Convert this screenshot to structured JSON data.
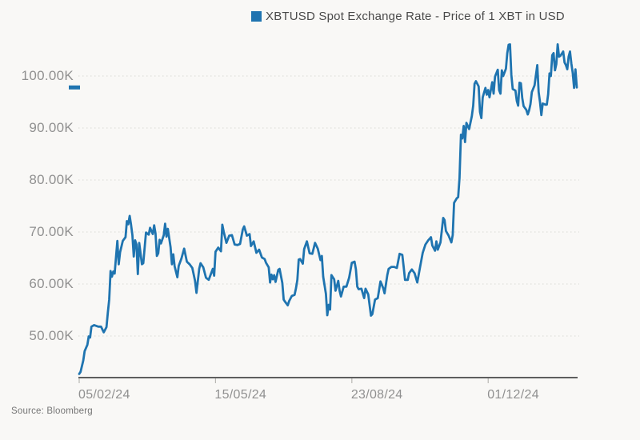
{
  "page": {
    "background": "#f9f8f6"
  },
  "legend": {
    "label": "XBTUSD Spot Exchange Rate - Price of 1 XBT in USD",
    "swatch_color": "#1f74b0"
  },
  "source_note": "Source: Bloomberg",
  "chart_data": {
    "type": "line",
    "title": "XBTUSD Spot Exchange Rate - Price of 1 XBT in USD",
    "xlabel": "",
    "ylabel": "",
    "y_unit": "USD, thousands (K)",
    "ylim": [
      42,
      108
    ],
    "grid": "horizontal-dotted",
    "legend_position": "top-center",
    "line_color": "#1f74b0",
    "y_ticks": [
      {
        "value": 50,
        "label": "50.00K"
      },
      {
        "value": 60,
        "label": "60.00K"
      },
      {
        "value": 70,
        "label": "70.00K"
      },
      {
        "value": 80,
        "label": "80.00K"
      },
      {
        "value": 90,
        "label": "90.00K"
      },
      {
        "value": 100,
        "label": "100.00K"
      }
    ],
    "x_ticks": [
      {
        "date": "2024-02-05",
        "label": "05/02/24"
      },
      {
        "date": "2024-05-15",
        "label": "15/05/24"
      },
      {
        "date": "2024-08-23",
        "label": "23/08/24"
      },
      {
        "date": "2024-12-01",
        "label": "01/12/24"
      }
    ],
    "series": [
      {
        "name": "XBTUSD Spot Exchange Rate - Price of 1 XBT in USD",
        "points": [
          [
            "2024-02-05",
            42.7
          ],
          [
            "2024-02-06",
            43.1
          ],
          [
            "2024-02-08",
            45.3
          ],
          [
            "2024-02-09",
            47.1
          ],
          [
            "2024-02-11",
            48.3
          ],
          [
            "2024-02-12",
            49.9
          ],
          [
            "2024-02-13",
            49.7
          ],
          [
            "2024-02-14",
            51.8
          ],
          [
            "2024-02-16",
            52.1
          ],
          [
            "2024-02-19",
            51.8
          ],
          [
            "2024-02-21",
            51.8
          ],
          [
            "2024-02-23",
            50.7
          ],
          [
            "2024-02-25",
            51.7
          ],
          [
            "2024-02-26",
            54.5
          ],
          [
            "2024-02-27",
            57.0
          ],
          [
            "2024-02-28",
            62.5
          ],
          [
            "2024-02-29",
            61.4
          ],
          [
            "2024-03-01",
            62.4
          ],
          [
            "2024-03-02",
            62.0
          ],
          [
            "2024-03-04",
            68.3
          ],
          [
            "2024-03-05",
            63.8
          ],
          [
            "2024-03-06",
            66.1
          ],
          [
            "2024-03-08",
            68.3
          ],
          [
            "2024-03-10",
            69.0
          ],
          [
            "2024-03-11",
            72.1
          ],
          [
            "2024-03-12",
            71.5
          ],
          [
            "2024-03-13",
            73.1
          ],
          [
            "2024-03-14",
            71.4
          ],
          [
            "2024-03-15",
            69.4
          ],
          [
            "2024-03-16",
            65.3
          ],
          [
            "2024-03-17",
            68.4
          ],
          [
            "2024-03-18",
            67.6
          ],
          [
            "2024-03-19",
            61.9
          ],
          [
            "2024-03-20",
            67.9
          ],
          [
            "2024-03-22",
            63.8
          ],
          [
            "2024-03-23",
            64.0
          ],
          [
            "2024-03-25",
            69.9
          ],
          [
            "2024-03-27",
            69.5
          ],
          [
            "2024-03-28",
            70.8
          ],
          [
            "2024-03-30",
            69.6
          ],
          [
            "2024-03-31",
            71.3
          ],
          [
            "2024-04-01",
            69.7
          ],
          [
            "2024-04-02",
            65.4
          ],
          [
            "2024-04-03",
            65.9
          ],
          [
            "2024-04-04",
            68.5
          ],
          [
            "2024-04-05",
            67.8
          ],
          [
            "2024-04-07",
            69.4
          ],
          [
            "2024-04-08",
            71.6
          ],
          [
            "2024-04-09",
            69.1
          ],
          [
            "2024-04-10",
            70.6
          ],
          [
            "2024-04-12",
            67.1
          ],
          [
            "2024-04-13",
            63.8
          ],
          [
            "2024-04-14",
            65.7
          ],
          [
            "2024-04-15",
            63.4
          ],
          [
            "2024-04-17",
            61.3
          ],
          [
            "2024-04-18",
            63.5
          ],
          [
            "2024-04-20",
            64.9
          ],
          [
            "2024-04-22",
            66.8
          ],
          [
            "2024-04-24",
            64.3
          ],
          [
            "2024-04-26",
            63.8
          ],
          [
            "2024-04-28",
            63.1
          ],
          [
            "2024-04-30",
            60.6
          ],
          [
            "2024-05-01",
            58.3
          ],
          [
            "2024-05-03",
            62.9
          ],
          [
            "2024-05-04",
            64.0
          ],
          [
            "2024-05-06",
            63.2
          ],
          [
            "2024-05-08",
            61.2
          ],
          [
            "2024-05-10",
            60.8
          ],
          [
            "2024-05-13",
            62.9
          ],
          [
            "2024-05-14",
            61.6
          ],
          [
            "2024-05-15",
            66.2
          ],
          [
            "2024-05-17",
            67.0
          ],
          [
            "2024-05-19",
            66.3
          ],
          [
            "2024-05-20",
            71.4
          ],
          [
            "2024-05-21",
            70.1
          ],
          [
            "2024-05-23",
            67.9
          ],
          [
            "2024-05-25",
            69.3
          ],
          [
            "2024-05-27",
            69.4
          ],
          [
            "2024-05-29",
            67.6
          ],
          [
            "2024-05-31",
            67.5
          ],
          [
            "2024-06-02",
            67.7
          ],
          [
            "2024-06-04",
            70.5
          ],
          [
            "2024-06-05",
            71.1
          ],
          [
            "2024-06-07",
            69.3
          ],
          [
            "2024-06-09",
            69.6
          ],
          [
            "2024-06-10",
            67.3
          ],
          [
            "2024-06-12",
            68.2
          ],
          [
            "2024-06-14",
            66.0
          ],
          [
            "2024-06-16",
            66.6
          ],
          [
            "2024-06-18",
            65.1
          ],
          [
            "2024-06-20",
            64.8
          ],
          [
            "2024-06-21",
            64.1
          ],
          [
            "2024-06-23",
            63.2
          ],
          [
            "2024-06-24",
            60.3
          ],
          [
            "2024-06-25",
            61.8
          ],
          [
            "2024-06-26",
            60.9
          ],
          [
            "2024-06-27",
            61.7
          ],
          [
            "2024-06-28",
            60.4
          ],
          [
            "2024-06-30",
            62.7
          ],
          [
            "2024-07-01",
            62.9
          ],
          [
            "2024-07-03",
            60.2
          ],
          [
            "2024-07-04",
            57.0
          ],
          [
            "2024-07-05",
            56.6
          ],
          [
            "2024-07-07",
            55.9
          ],
          [
            "2024-07-08",
            56.7
          ],
          [
            "2024-07-10",
            57.7
          ],
          [
            "2024-07-12",
            57.9
          ],
          [
            "2024-07-13",
            59.2
          ],
          [
            "2024-07-14",
            60.8
          ],
          [
            "2024-07-15",
            64.7
          ],
          [
            "2024-07-16",
            64.8
          ],
          [
            "2024-07-18",
            63.9
          ],
          [
            "2024-07-19",
            66.7
          ],
          [
            "2024-07-21",
            68.2
          ],
          [
            "2024-07-23",
            65.9
          ],
          [
            "2024-07-25",
            65.8
          ],
          [
            "2024-07-27",
            67.9
          ],
          [
            "2024-07-29",
            66.8
          ],
          [
            "2024-07-31",
            64.6
          ],
          [
            "2024-08-01",
            65.4
          ],
          [
            "2024-08-02",
            61.4
          ],
          [
            "2024-08-04",
            58.1
          ],
          [
            "2024-08-05",
            54.0
          ],
          [
            "2024-08-06",
            56.0
          ],
          [
            "2024-08-07",
            55.1
          ],
          [
            "2024-08-08",
            61.7
          ],
          [
            "2024-08-10",
            60.9
          ],
          [
            "2024-08-11",
            58.7
          ],
          [
            "2024-08-13",
            60.6
          ],
          [
            "2024-08-14",
            58.7
          ],
          [
            "2024-08-15",
            57.6
          ],
          [
            "2024-08-17",
            59.5
          ],
          [
            "2024-08-19",
            59.5
          ],
          [
            "2024-08-21",
            61.2
          ],
          [
            "2024-08-23",
            64.1
          ],
          [
            "2024-08-25",
            64.3
          ],
          [
            "2024-08-26",
            62.8
          ],
          [
            "2024-08-27",
            59.5
          ],
          [
            "2024-08-28",
            59.0
          ],
          [
            "2024-08-30",
            59.1
          ],
          [
            "2024-09-01",
            57.3
          ],
          [
            "2024-09-02",
            59.1
          ],
          [
            "2024-09-04",
            58.0
          ],
          [
            "2024-09-06",
            53.9
          ],
          [
            "2024-09-07",
            54.2
          ],
          [
            "2024-09-09",
            57.0
          ],
          [
            "2024-09-11",
            57.3
          ],
          [
            "2024-09-13",
            60.5
          ],
          [
            "2024-09-15",
            59.2
          ],
          [
            "2024-09-16",
            58.2
          ],
          [
            "2024-09-18",
            61.7
          ],
          [
            "2024-09-19",
            62.9
          ],
          [
            "2024-09-21",
            63.3
          ],
          [
            "2024-09-23",
            63.3
          ],
          [
            "2024-09-25",
            63.1
          ],
          [
            "2024-09-27",
            65.8
          ],
          [
            "2024-09-29",
            65.6
          ],
          [
            "2024-09-30",
            63.3
          ],
          [
            "2024-10-01",
            60.8
          ],
          [
            "2024-10-03",
            60.8
          ],
          [
            "2024-10-04",
            62.1
          ],
          [
            "2024-10-06",
            62.8
          ],
          [
            "2024-10-08",
            62.1
          ],
          [
            "2024-10-10",
            60.3
          ],
          [
            "2024-10-12",
            63.2
          ],
          [
            "2024-10-14",
            66.0
          ],
          [
            "2024-10-16",
            67.6
          ],
          [
            "2024-10-18",
            68.4
          ],
          [
            "2024-10-20",
            69.0
          ],
          [
            "2024-10-21",
            67.4
          ],
          [
            "2024-10-23",
            66.4
          ],
          [
            "2024-10-24",
            68.2
          ],
          [
            "2024-10-25",
            66.6
          ],
          [
            "2024-10-27",
            68.0
          ],
          [
            "2024-10-29",
            72.7
          ],
          [
            "2024-10-30",
            72.3
          ],
          [
            "2024-10-31",
            70.2
          ],
          [
            "2024-11-02",
            69.3
          ],
          [
            "2024-11-04",
            68.0
          ],
          [
            "2024-11-05",
            69.4
          ],
          [
            "2024-11-06",
            75.6
          ],
          [
            "2024-11-08",
            76.5
          ],
          [
            "2024-11-09",
            76.7
          ],
          [
            "2024-11-10",
            80.4
          ],
          [
            "2024-11-11",
            88.7
          ],
          [
            "2024-11-12",
            88.0
          ],
          [
            "2024-11-13",
            90.4
          ],
          [
            "2024-11-14",
            87.3
          ],
          [
            "2024-11-15",
            91.0
          ],
          [
            "2024-11-17",
            89.8
          ],
          [
            "2024-11-19",
            92.3
          ],
          [
            "2024-11-20",
            94.3
          ],
          [
            "2024-11-21",
            98.5
          ],
          [
            "2024-11-22",
            99.0
          ],
          [
            "2024-11-24",
            98.0
          ],
          [
            "2024-11-25",
            93.1
          ],
          [
            "2024-11-26",
            91.9
          ],
          [
            "2024-11-27",
            95.9
          ],
          [
            "2024-11-29",
            97.7
          ],
          [
            "2024-11-30",
            96.4
          ],
          [
            "2024-12-01",
            97.3
          ],
          [
            "2024-12-02",
            95.9
          ],
          [
            "2024-12-04",
            98.8
          ],
          [
            "2024-12-05",
            96.6
          ],
          [
            "2024-12-06",
            99.9
          ],
          [
            "2024-12-08",
            101.2
          ],
          [
            "2024-12-09",
            97.3
          ],
          [
            "2024-12-10",
            96.6
          ],
          [
            "2024-12-11",
            101.1
          ],
          [
            "2024-12-12",
            100.0
          ],
          [
            "2024-12-14",
            101.4
          ],
          [
            "2024-12-15",
            104.4
          ],
          [
            "2024-12-16",
            106.0
          ],
          [
            "2024-12-17",
            106.1
          ],
          [
            "2024-12-18",
            100.2
          ],
          [
            "2024-12-19",
            97.5
          ],
          [
            "2024-12-21",
            97.2
          ],
          [
            "2024-12-22",
            95.2
          ],
          [
            "2024-12-23",
            94.3
          ],
          [
            "2024-12-24",
            98.7
          ],
          [
            "2024-12-25",
            98.6
          ],
          [
            "2024-12-26",
            95.8
          ],
          [
            "2024-12-27",
            94.2
          ],
          [
            "2024-12-29",
            93.5
          ],
          [
            "2024-12-30",
            92.6
          ],
          [
            "2024-12-31",
            93.4
          ],
          [
            "2025-01-01",
            94.6
          ],
          [
            "2025-01-02",
            96.9
          ],
          [
            "2025-01-04",
            98.2
          ],
          [
            "2025-01-06",
            102.1
          ],
          [
            "2025-01-07",
            96.9
          ],
          [
            "2025-01-08",
            95.0
          ],
          [
            "2025-01-09",
            92.5
          ],
          [
            "2025-01-10",
            94.7
          ],
          [
            "2025-01-12",
            94.5
          ],
          [
            "2025-01-13",
            94.5
          ],
          [
            "2025-01-14",
            96.5
          ],
          [
            "2025-01-15",
            100.5
          ],
          [
            "2025-01-16",
            100.0
          ],
          [
            "2025-01-17",
            104.0
          ],
          [
            "2025-01-18",
            104.4
          ],
          [
            "2025-01-19",
            101.1
          ],
          [
            "2025-01-20",
            102.3
          ],
          [
            "2025-01-21",
            106.1
          ],
          [
            "2025-01-22",
            103.7
          ],
          [
            "2025-01-23",
            103.9
          ],
          [
            "2025-01-25",
            104.7
          ],
          [
            "2025-01-26",
            102.6
          ],
          [
            "2025-01-27",
            102.1
          ],
          [
            "2025-01-28",
            101.3
          ],
          [
            "2025-01-29",
            103.7
          ],
          [
            "2025-01-30",
            104.7
          ],
          [
            "2025-01-31",
            102.4
          ],
          [
            "2025-02-01",
            100.6
          ],
          [
            "2025-02-02",
            97.7
          ],
          [
            "2025-02-03",
            101.3
          ],
          [
            "2025-02-04",
            97.8
          ]
        ]
      }
    ]
  }
}
